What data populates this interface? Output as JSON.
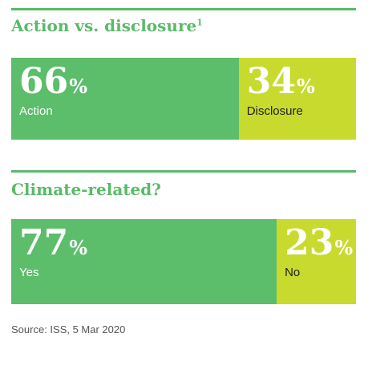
{
  "colors": {
    "green": "#5cbd6b",
    "lime": "#c8da2e",
    "rule": "#5aba6a",
    "title": "#5aba6a",
    "label_on_green": "#ffffff",
    "label_on_lime": "#222222"
  },
  "chart_data": [
    {
      "type": "bar",
      "stacked": true,
      "orientation": "horizontal",
      "title": "Action vs. disclosure",
      "title_footnote": "1",
      "unit": "%",
      "categories": [
        "Action",
        "Disclosure"
      ],
      "values": [
        66,
        34
      ]
    },
    {
      "type": "bar",
      "stacked": true,
      "orientation": "horizontal",
      "title": "Climate-related?",
      "title_footnote": "",
      "unit": "%",
      "categories": [
        "Yes",
        "No"
      ],
      "values": [
        77,
        23
      ]
    }
  ],
  "source": "Source: ISS, 5 Mar 2020"
}
